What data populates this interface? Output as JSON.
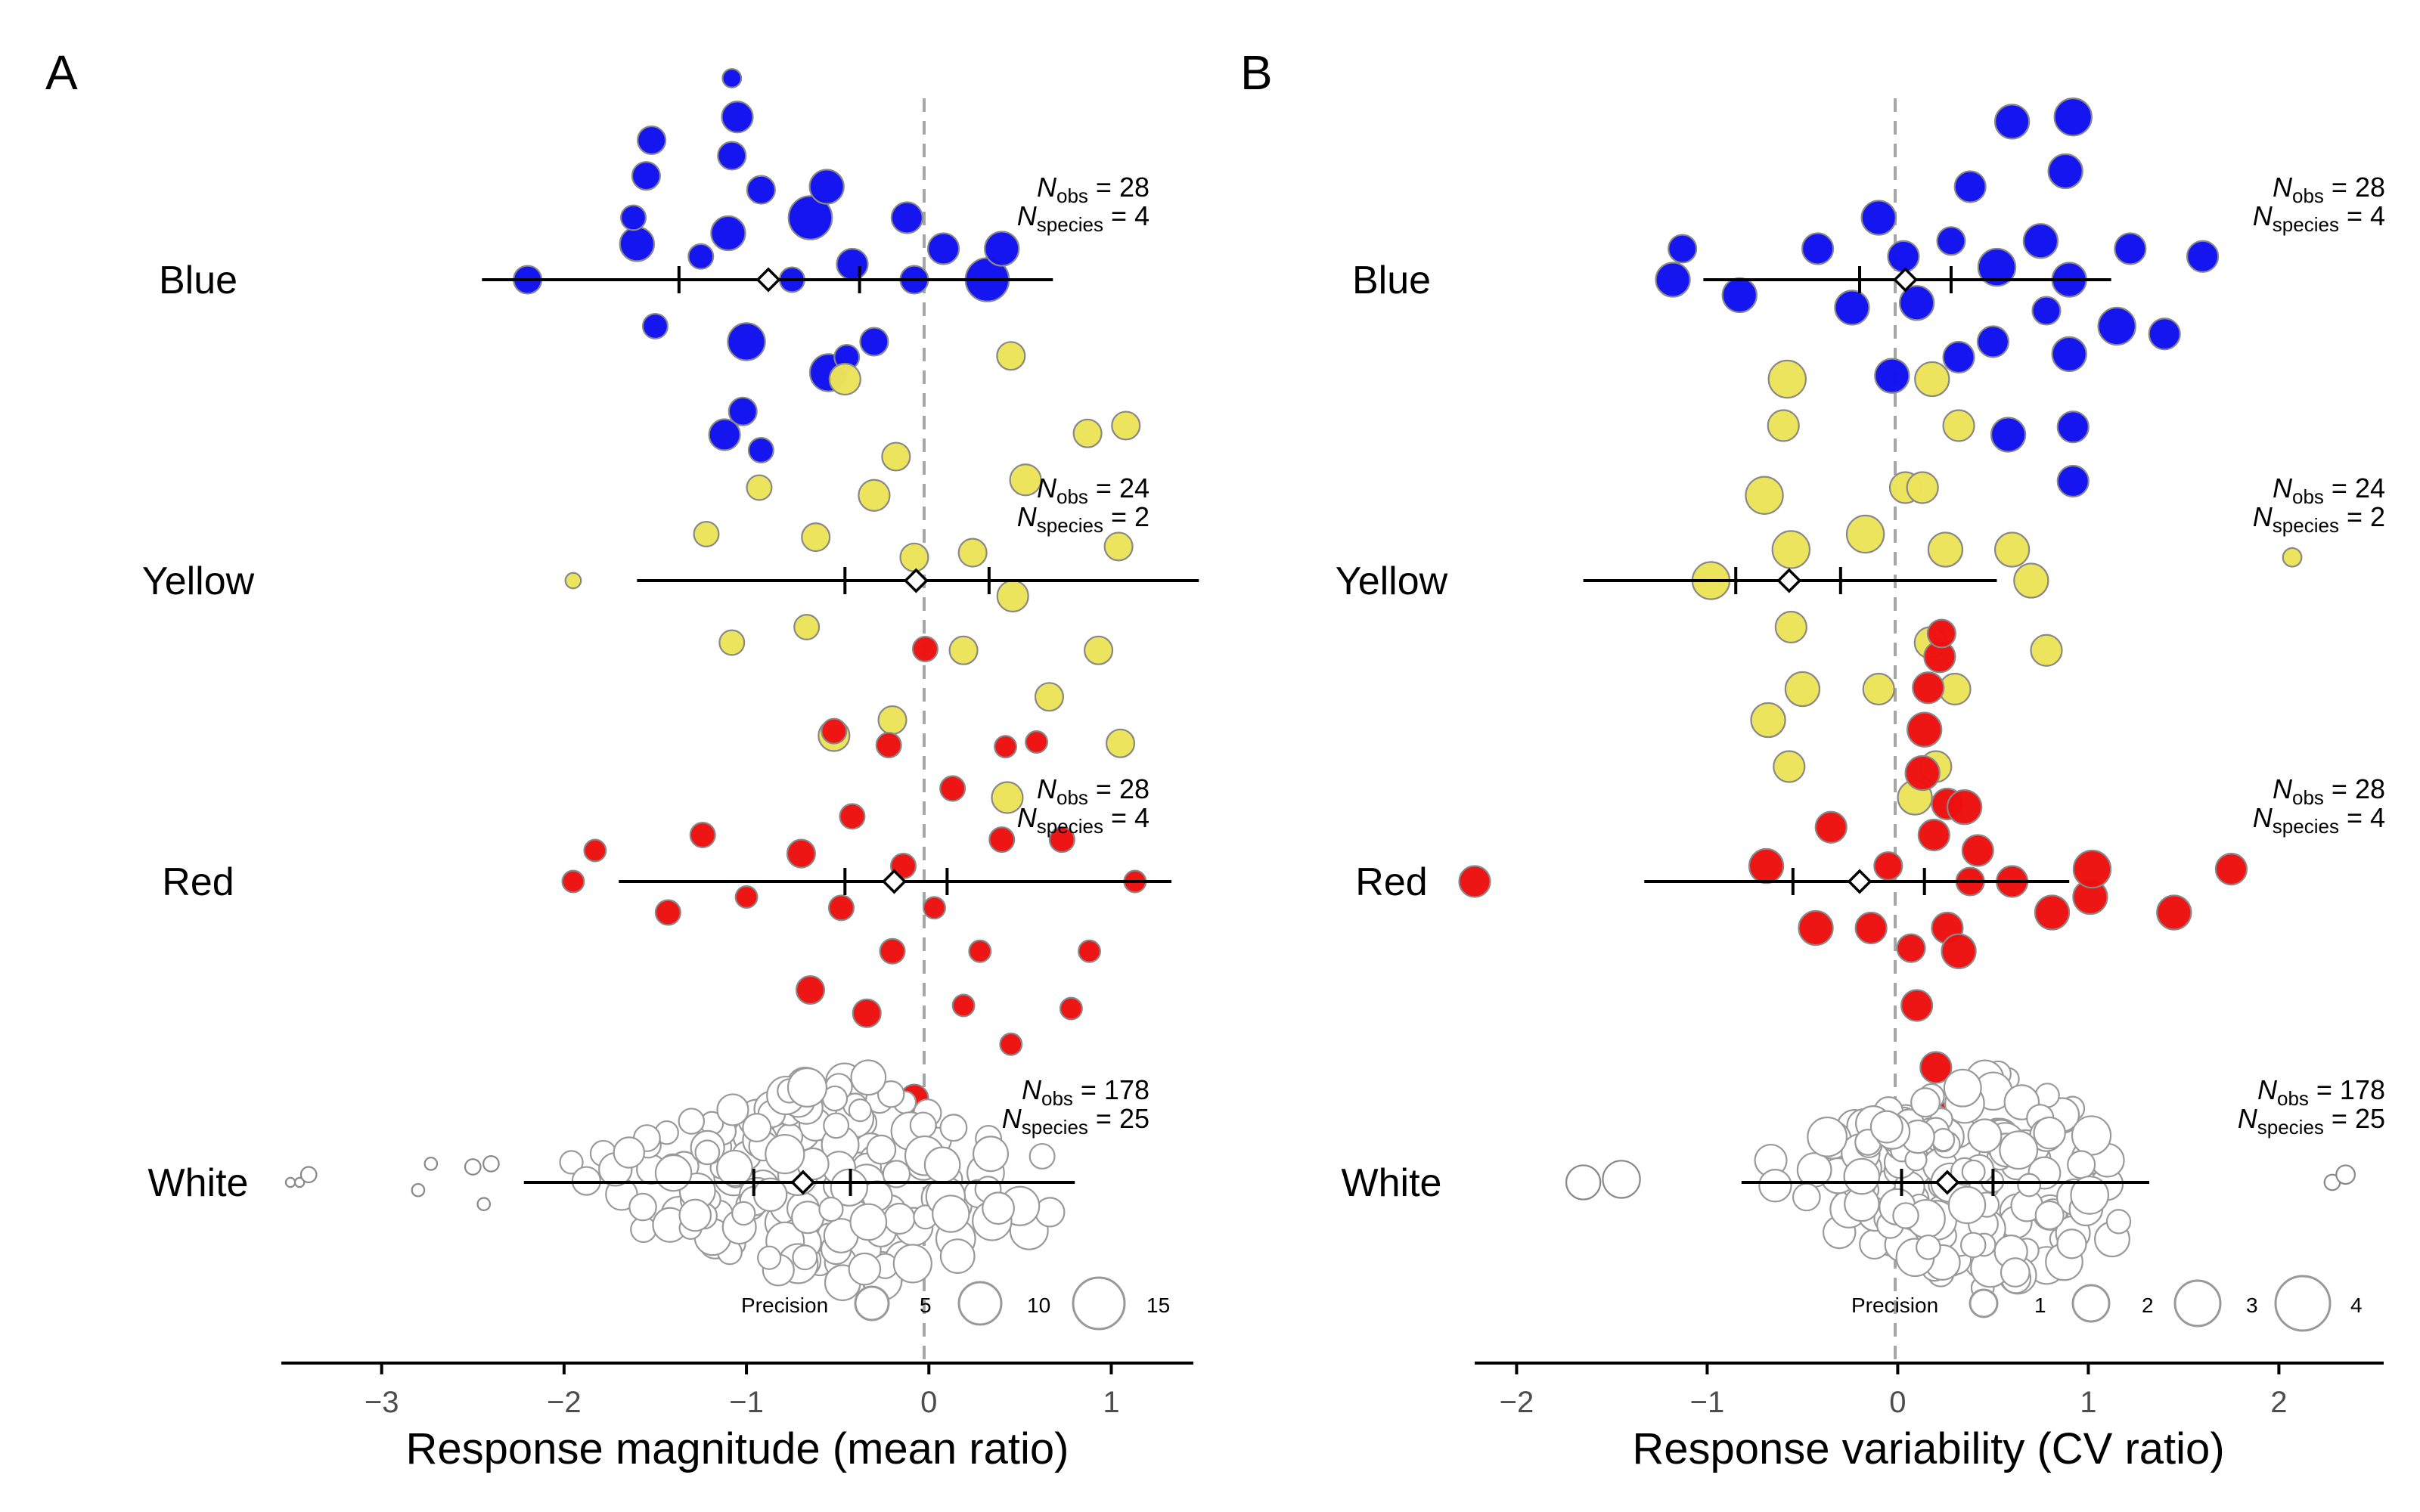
{
  "chart_data": [
    {
      "panel_label": "A",
      "type": "scatter",
      "xlabel": "Response magnitude (mean ratio)",
      "xlim": [
        -3.55,
        1.45
      ],
      "xticks": [
        -3,
        -2,
        -1,
        0,
        1
      ],
      "reference_line_x": 0,
      "groups": [
        {
          "name": "Blue",
          "color": "#1010f0",
          "n_obs": "28",
          "n_species": "4",
          "estimate": -0.88,
          "ci": [
            -1.37,
            -0.38
          ],
          "pi": [
            -2.45,
            0.68
          ],
          "points": [
            [
              -2.2,
              0,
              9
            ],
            [
              -1.6,
              -23,
              11
            ],
            [
              -1.62,
              -40,
              8
            ],
            [
              -1.55,
              -67,
              9
            ],
            [
              -1.52,
              -90,
              9
            ],
            [
              -1.5,
              30,
              8
            ],
            [
              -1.1,
              -30,
              11
            ],
            [
              -1.08,
              -80,
              9
            ],
            [
              -1.05,
              -105,
              10
            ],
            [
              -1.08,
              -130,
              6
            ],
            [
              -1.0,
              40,
              12
            ],
            [
              -0.92,
              -58,
              9
            ],
            [
              -0.75,
              0,
              8
            ],
            [
              -0.65,
              -40,
              14
            ],
            [
              -0.56,
              -60,
              11
            ],
            [
              -0.55,
              60,
              12
            ],
            [
              -0.45,
              50,
              8
            ],
            [
              -0.3,
              40,
              9
            ],
            [
              -0.12,
              -40,
              10
            ],
            [
              -0.08,
              0,
              9
            ],
            [
              0.08,
              -20,
              10
            ],
            [
              0.32,
              0,
              14
            ],
            [
              0.4,
              -20,
              11
            ],
            [
              -0.42,
              -10,
              10
            ],
            [
              -1.12,
              100,
              10
            ],
            [
              -1.02,
              85,
              9
            ],
            [
              -0.92,
              110,
              8
            ],
            [
              -1.25,
              -15,
              8
            ]
          ]
        },
        {
          "name": "Yellow",
          "color": "#ede35a",
          "n_obs": "24",
          "n_species": "2",
          "estimate": -0.07,
          "ci": [
            -0.46,
            0.33
          ],
          "pi": [
            -1.6,
            1.48
          ],
          "points": [
            [
              -1.95,
              0,
              5
            ],
            [
              -1.22,
              -30,
              8
            ],
            [
              -1.08,
              40,
              8
            ],
            [
              -0.93,
              -60,
              8
            ],
            [
              -0.67,
              30,
              8
            ],
            [
              -0.62,
              -28,
              9
            ],
            [
              -0.52,
              100,
              10
            ],
            [
              -0.46,
              -130,
              10
            ],
            [
              -0.3,
              -55,
              10
            ],
            [
              -0.2,
              90,
              9
            ],
            [
              -0.18,
              -80,
              9
            ],
            [
              -0.08,
              -15,
              9
            ],
            [
              0.19,
              45,
              9
            ],
            [
              0.24,
              -18,
              9
            ],
            [
              0.43,
              140,
              10
            ],
            [
              0.46,
              10,
              10
            ],
            [
              0.53,
              -65,
              10
            ],
            [
              0.45,
              -145,
              9
            ],
            [
              0.66,
              75,
              9
            ],
            [
              0.87,
              -95,
              9
            ],
            [
              0.93,
              45,
              9
            ],
            [
              1.04,
              -22,
              9
            ],
            [
              1.08,
              -100,
              9
            ],
            [
              1.05,
              105,
              9
            ]
          ]
        },
        {
          "name": "Red",
          "color": "#ee1010",
          "n_obs": "28",
          "n_species": "4",
          "estimate": -0.19,
          "ci": [
            -0.46,
            0.1
          ],
          "pi": [
            -1.7,
            1.33
          ],
          "points": [
            [
              -1.95,
              0,
              7
            ],
            [
              -1.83,
              -20,
              7
            ],
            [
              -1.43,
              20,
              8
            ],
            [
              -1.24,
              -30,
              8
            ],
            [
              -1.0,
              10,
              7
            ],
            [
              -0.7,
              -18,
              9
            ],
            [
              -0.65,
              70,
              9
            ],
            [
              -0.48,
              17,
              8
            ],
            [
              -0.42,
              -42,
              8
            ],
            [
              -0.34,
              85,
              9
            ],
            [
              -0.22,
              -88,
              8
            ],
            [
              -0.2,
              45,
              8
            ],
            [
              -0.14,
              -10,
              8
            ],
            [
              -0.02,
              -150,
              8
            ],
            [
              -0.08,
              140,
              9
            ],
            [
              0.03,
              17,
              7
            ],
            [
              0.13,
              -60,
              8
            ],
            [
              0.19,
              80,
              7
            ],
            [
              0.28,
              45,
              7
            ],
            [
              0.4,
              -27,
              8
            ],
            [
              0.42,
              -87,
              7
            ],
            [
              0.45,
              105,
              7
            ],
            [
              0.59,
              -90,
              7
            ],
            [
              0.73,
              -27,
              8
            ],
            [
              0.78,
              82,
              7
            ],
            [
              0.88,
              45,
              7
            ],
            [
              1.13,
              0,
              7
            ],
            [
              -0.52,
              -97,
              8
            ]
          ]
        },
        {
          "name": "White",
          "color": "#ffffff",
          "n_obs": "178",
          "n_species": "25",
          "estimate": -0.69,
          "ci": [
            -0.96,
            -0.43
          ],
          "pi": [
            -2.22,
            0.8
          ],
          "points": [
            [
              -3.5,
              0,
              3
            ],
            [
              -3.45,
              0,
              3
            ],
            [
              -3.4,
              -5,
              5
            ],
            [
              -2.8,
              5,
              4
            ],
            [
              -2.73,
              -12,
              4
            ],
            [
              -2.5,
              -10,
              5
            ],
            [
              -2.44,
              14,
              4
            ],
            [
              -2.4,
              -12,
              5
            ]
          ]
        }
      ],
      "size_legend": {
        "title": "Precision",
        "labels": [
          "5",
          "10",
          "15"
        ]
      }
    },
    {
      "panel_label": "B",
      "type": "scatter",
      "xlabel": "Response variability (CV ratio)",
      "xlim": [
        -2.22,
        2.55
      ],
      "xticks": [
        -2,
        -1,
        0,
        1,
        2
      ],
      "reference_line_x": 0,
      "groups": [
        {
          "name": "Blue",
          "color": "#1010f0",
          "n_obs": "28",
          "n_species": "4",
          "estimate": 0.04,
          "ci": [
            -0.2,
            0.28
          ],
          "pi": [
            -1.02,
            1.12
          ],
          "points": [
            [
              -1.18,
              0,
              11
            ],
            [
              -1.13,
              -20,
              9
            ],
            [
              -0.83,
              10,
              11
            ],
            [
              -0.42,
              -20,
              10
            ],
            [
              -0.24,
              18,
              11
            ],
            [
              -0.1,
              -40,
              11
            ],
            [
              -0.03,
              62,
              11
            ],
            [
              0.03,
              -15,
              10
            ],
            [
              0.1,
              15,
              11
            ],
            [
              0.28,
              -25,
              9
            ],
            [
              0.32,
              50,
              10
            ],
            [
              0.38,
              -60,
              10
            ],
            [
              0.5,
              40,
              10
            ],
            [
              0.52,
              -8,
              12
            ],
            [
              0.58,
              100,
              11
            ],
            [
              0.6,
              -102,
              11
            ],
            [
              0.75,
              -25,
              11
            ],
            [
              0.92,
              130,
              10
            ],
            [
              0.9,
              0,
              11
            ],
            [
              0.88,
              -70,
              11
            ],
            [
              0.9,
              48,
              11
            ],
            [
              0.92,
              -105,
              12
            ],
            [
              0.92,
              95,
              10
            ],
            [
              1.15,
              30,
              12
            ],
            [
              1.22,
              -20,
              10
            ],
            [
              1.4,
              35,
              10
            ],
            [
              1.6,
              -15,
              10
            ],
            [
              0.78,
              20,
              9
            ]
          ]
        },
        {
          "name": "Yellow",
          "color": "#ede35a",
          "n_obs": "24",
          "n_species": "2",
          "estimate": -0.57,
          "ci": [
            -0.85,
            -0.3
          ],
          "pi": [
            -1.65,
            0.52
          ],
          "points": [
            [
              2.07,
              -15,
              6
            ],
            [
              -0.98,
              0,
              12
            ],
            [
              -0.7,
              -55,
              12
            ],
            [
              -0.68,
              90,
              11
            ],
            [
              -0.56,
              -20,
              12
            ],
            [
              -0.58,
              -130,
              12
            ],
            [
              -0.56,
              30,
              10
            ],
            [
              -0.57,
              120,
              10
            ],
            [
              -0.6,
              -100,
              10
            ],
            [
              -0.5,
              70,
              11
            ],
            [
              -0.17,
              -30,
              12
            ],
            [
              -0.1,
              70,
              10
            ],
            [
              0.04,
              -60,
              10
            ],
            [
              0.09,
              140,
              11
            ],
            [
              0.13,
              -60,
              10
            ],
            [
              0.18,
              -130,
              11
            ],
            [
              0.2,
              120,
              10
            ],
            [
              0.25,
              -20,
              11
            ],
            [
              0.3,
              70,
              10
            ],
            [
              0.32,
              -100,
              10
            ],
            [
              0.6,
              -20,
              11
            ],
            [
              0.7,
              0,
              11
            ],
            [
              0.78,
              45,
              10
            ],
            [
              0.17,
              40,
              10
            ]
          ]
        },
        {
          "name": "Red",
          "color": "#ee1010",
          "n_obs": "28",
          "n_species": "4",
          "estimate": -0.2,
          "ci": [
            -0.55,
            0.14
          ],
          "pi": [
            -1.33,
            0.9
          ],
          "points": [
            [
              -2.22,
              0,
              10
            ],
            [
              -0.69,
              -10,
              11
            ],
            [
              -0.43,
              30,
              11
            ],
            [
              -0.35,
              -35,
              10
            ],
            [
              -0.14,
              30,
              10
            ],
            [
              -0.05,
              -10,
              9
            ],
            [
              0.07,
              43,
              9
            ],
            [
              0.1,
              80,
              10
            ],
            [
              0.13,
              -70,
              11
            ],
            [
              0.14,
              -98,
              11
            ],
            [
              0.16,
              -125,
              10
            ],
            [
              0.19,
              -30,
              10
            ],
            [
              0.2,
              120,
              10
            ],
            [
              0.22,
              -145,
              10
            ],
            [
              0.23,
              -160,
              9
            ],
            [
              0.18,
              148,
              9
            ],
            [
              0.26,
              -50,
              10
            ],
            [
              0.26,
              30,
              10
            ],
            [
              0.32,
              45,
              11
            ],
            [
              0.35,
              -48,
              11
            ],
            [
              0.42,
              -20,
              10
            ],
            [
              0.6,
              0,
              10
            ],
            [
              0.81,
              20,
              11
            ],
            [
              1.01,
              10,
              11
            ],
            [
              1.02,
              -8,
              12
            ],
            [
              1.45,
              20,
              11
            ],
            [
              1.75,
              -8,
              10
            ],
            [
              0.38,
              0,
              9
            ]
          ]
        },
        {
          "name": "White",
          "color": "#ffffff",
          "n_obs": "178",
          "n_species": "25",
          "estimate": 0.26,
          "ci": [
            0.02,
            0.5
          ],
          "pi": [
            -0.82,
            1.32
          ],
          "points": [
            [
              -1.65,
              0,
              11
            ],
            [
              -1.45,
              -2,
              12
            ],
            [
              2.28,
              0,
              5
            ],
            [
              2.35,
              -5,
              6
            ]
          ]
        }
      ],
      "size_legend": {
        "title": "Precision",
        "labels": [
          "1",
          "2",
          "3",
          "4"
        ]
      }
    }
  ]
}
